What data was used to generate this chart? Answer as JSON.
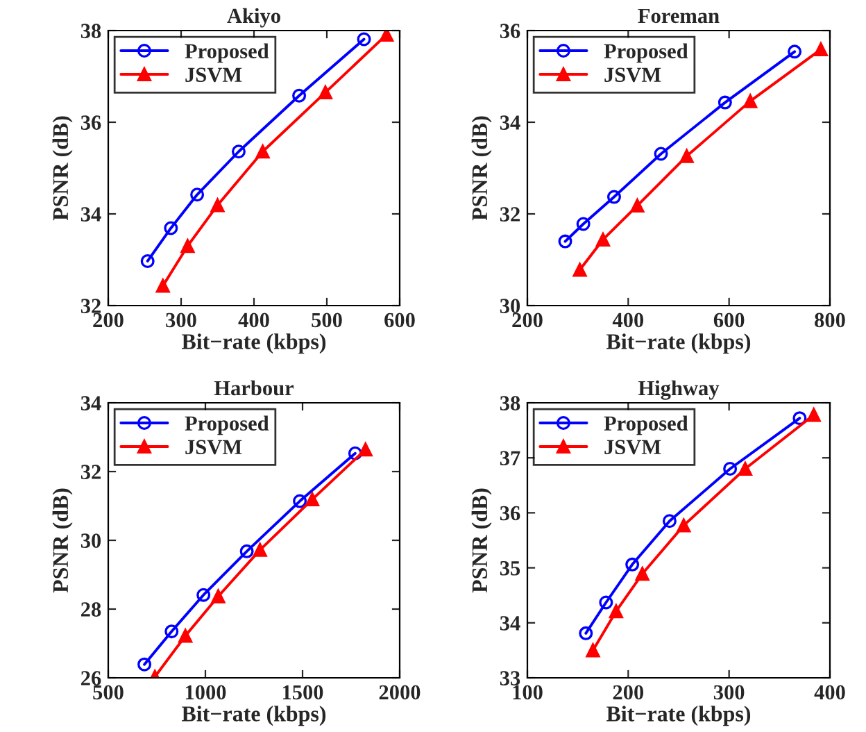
{
  "chart_data": [
    {
      "type": "line",
      "title": "Akiyo",
      "xlabel": "Bit−rate (kbps)",
      "ylabel": "PSNR (dB)",
      "xlim": [
        200,
        600
      ],
      "xticks": [
        200,
        300,
        400,
        500,
        600
      ],
      "ylim": [
        32,
        38
      ],
      "yticks": [
        32,
        34,
        36,
        38
      ],
      "legend": "top left",
      "grid": false,
      "series": [
        {
          "name": "Proposed",
          "color": "#0000ff",
          "marker": "circle",
          "x": [
            254,
            286,
            322,
            379,
            462,
            551
          ],
          "values": [
            32.97,
            33.69,
            34.42,
            35.36,
            36.58,
            37.81
          ]
        },
        {
          "name": "JSVM",
          "color": "#ff0000",
          "marker": "triangle",
          "x": [
            275,
            309,
            350,
            412,
            498,
            582
          ],
          "values": [
            32.43,
            33.3,
            34.19,
            35.36,
            36.65,
            37.91
          ]
        }
      ]
    },
    {
      "type": "line",
      "title": "Foreman",
      "xlabel": "Bit−rate (kbps)",
      "ylabel": "PSNR (dB)",
      "xlim": [
        200,
        800
      ],
      "xticks": [
        200,
        400,
        600,
        800
      ],
      "ylim": [
        30,
        36
      ],
      "yticks": [
        30,
        32,
        34,
        36
      ],
      "legend": "top left",
      "grid": false,
      "series": [
        {
          "name": "Proposed",
          "color": "#0000ff",
          "marker": "circle",
          "x": [
            275,
            311,
            372,
            465,
            592,
            730
          ],
          "values": [
            31.4,
            31.78,
            32.37,
            33.31,
            34.43,
            35.54
          ]
        },
        {
          "name": "JSVM",
          "color": "#ff0000",
          "marker": "triangle",
          "x": [
            304,
            350,
            418,
            516,
            642,
            782
          ],
          "values": [
            30.78,
            31.44,
            32.18,
            33.26,
            34.46,
            35.59
          ]
        }
      ]
    },
    {
      "type": "line",
      "title": "Harbour",
      "xlabel": "Bit−rate (kbps)",
      "ylabel": "PSNR (dB)",
      "xlim": [
        500,
        2000
      ],
      "xticks": [
        500,
        1000,
        1500,
        2000
      ],
      "ylim": [
        26,
        34
      ],
      "yticks": [
        26,
        28,
        30,
        32,
        34
      ],
      "legend": "top left",
      "grid": false,
      "series": [
        {
          "name": "Proposed",
          "color": "#0000ff",
          "marker": "circle",
          "x": [
            686,
            826,
            990,
            1213,
            1486,
            1771
          ],
          "values": [
            26.39,
            27.35,
            28.41,
            29.68,
            31.14,
            32.53
          ]
        },
        {
          "name": "JSVM",
          "color": "#ff0000",
          "marker": "triangle",
          "x": [
            740,
            897,
            1066,
            1281,
            1550,
            1824
          ],
          "values": [
            26.03,
            27.22,
            28.37,
            29.72,
            31.19,
            32.64
          ]
        }
      ]
    },
    {
      "type": "line",
      "title": "Highway",
      "xlabel": "Bit−rate (kbps)",
      "ylabel": "PSNR (dB)",
      "xlim": [
        100,
        400
      ],
      "xticks": [
        100,
        200,
        300,
        400
      ],
      "ylim": [
        33,
        38
      ],
      "yticks": [
        33,
        34,
        35,
        36,
        37,
        38
      ],
      "legend": "top left",
      "grid": false,
      "series": [
        {
          "name": "Proposed",
          "color": "#0000ff",
          "marker": "circle",
          "x": [
            158,
            178,
            204,
            241,
            301,
            370
          ],
          "values": [
            33.81,
            34.37,
            35.06,
            35.85,
            36.8,
            37.72
          ]
        },
        {
          "name": "JSVM",
          "color": "#ff0000",
          "marker": "triangle",
          "x": [
            165,
            188,
            214,
            255,
            316,
            384
          ],
          "values": [
            33.5,
            34.21,
            34.89,
            35.77,
            36.8,
            37.78
          ]
        }
      ]
    }
  ]
}
